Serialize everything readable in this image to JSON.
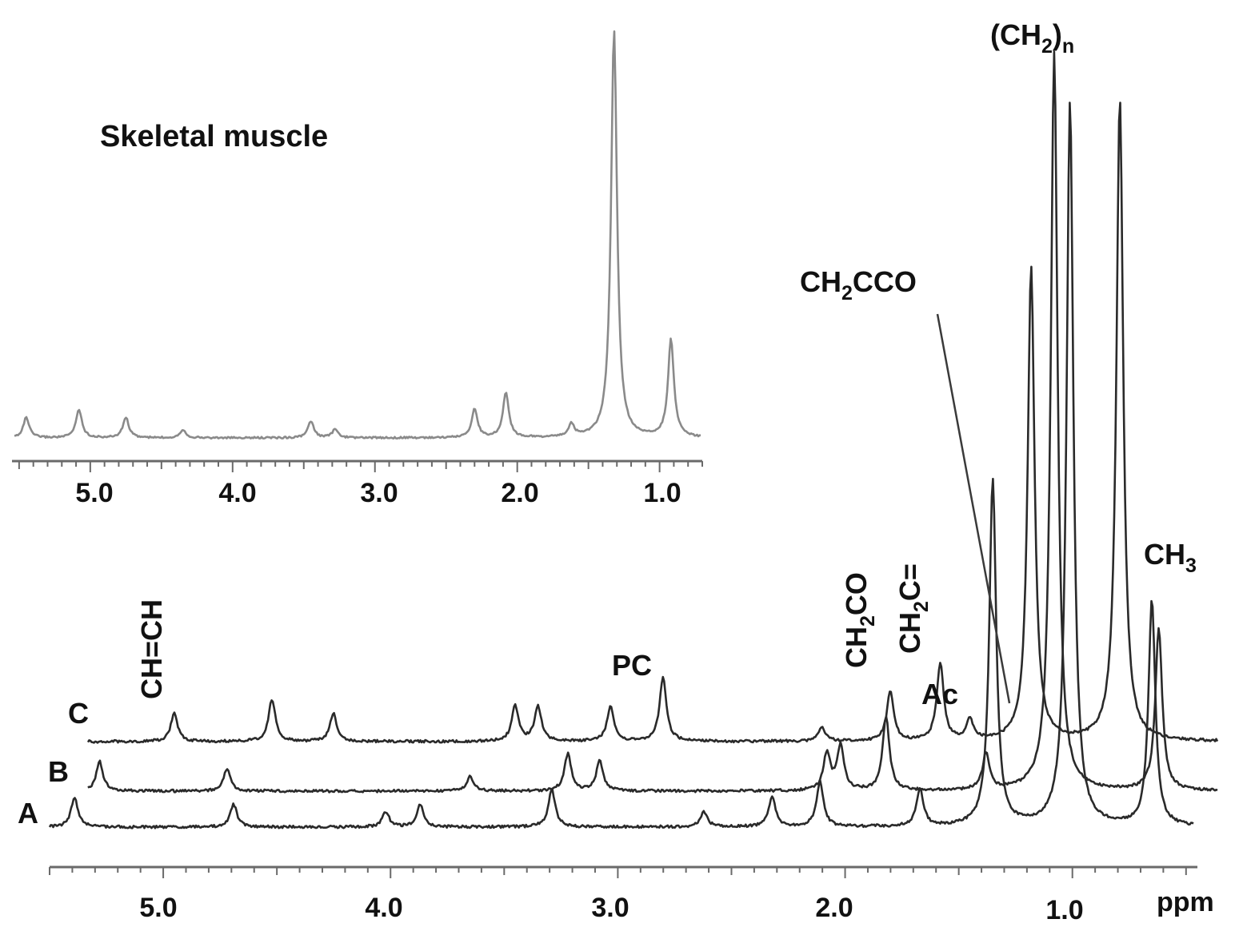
{
  "inset": {
    "title": "Skeletal muscle",
    "x_ticks": [
      "5.0",
      "4.0",
      "3.0",
      "2.0",
      "1.0"
    ]
  },
  "main": {
    "x_ticks": [
      "5.0",
      "4.0",
      "3.0",
      "2.0",
      "1.0"
    ],
    "x_unit": "ppm",
    "trace_labels": [
      "C",
      "B",
      "A"
    ],
    "peak_labels": {
      "ch2n": {
        "main": "(CH",
        "sub": "2",
        "close": ")",
        "sub2": "n"
      },
      "ch2cco": {
        "main": "CH",
        "sub": "2",
        "rest": "CCO"
      },
      "ch3": {
        "main": "CH",
        "sub": "3"
      },
      "chch": "CH=CH",
      "pc": "PC",
      "ch2co": {
        "main": "CH",
        "sub": "2",
        "rest": "CO"
      },
      "ch2c": {
        "main": "CH",
        "sub": "2",
        "rest": "C="
      },
      "ac": "Ac"
    }
  },
  "colors": {
    "trace": "#2a2a2a",
    "inset_trace": "#8a8a8a",
    "axis": "#6a6a6a",
    "text": "#111111"
  },
  "chart_data": [
    {
      "type": "line",
      "title": "Skeletal muscle",
      "xlabel": "",
      "ylabel": "",
      "x_reversed": true,
      "xlim": [
        5.55,
        0.7
      ],
      "x_ticks": [
        5.0,
        4.0,
        3.0,
        2.0,
        1.0
      ],
      "series": [
        {
          "peaks": [
            {
              "ppm": 5.45,
              "height": 0.05
            },
            {
              "ppm": 5.08,
              "height": 0.07
            },
            {
              "ppm": 4.75,
              "height": 0.05
            },
            {
              "ppm": 4.35,
              "height": 0.02
            },
            {
              "ppm": 3.45,
              "height": 0.04
            },
            {
              "ppm": 3.28,
              "height": 0.02
            },
            {
              "ppm": 2.3,
              "height": 0.07
            },
            {
              "ppm": 2.08,
              "height": 0.11
            },
            {
              "ppm": 1.62,
              "height": 0.03
            },
            {
              "ppm": 1.32,
              "height": 1.0
            },
            {
              "ppm": 0.92,
              "height": 0.24
            }
          ]
        }
      ]
    },
    {
      "type": "line",
      "xlabel": "ppm",
      "ylabel": "",
      "x_reversed": true,
      "xlim": [
        5.5,
        0.45
      ],
      "x_ticks": [
        5.0,
        4.0,
        3.0,
        2.0,
        1.0
      ],
      "series": [
        {
          "name": "C",
          "peaks": [
            {
              "ppm": 5.05,
              "height": 0.04
            },
            {
              "ppm": 4.62,
              "height": 0.06
            },
            {
              "ppm": 4.35,
              "height": 0.04
            },
            {
              "ppm": 3.55,
              "height": 0.05
            },
            {
              "ppm": 3.45,
              "height": 0.05
            },
            {
              "ppm": 3.13,
              "height": 0.05
            },
            {
              "ppm": 2.9,
              "height": 0.09
            },
            {
              "ppm": 2.2,
              "height": 0.02
            },
            {
              "ppm": 1.9,
              "height": 0.07
            },
            {
              "ppm": 1.68,
              "height": 0.11
            },
            {
              "ppm": 1.55,
              "height": 0.03
            },
            {
              "ppm": 1.28,
              "height": 0.67
            },
            {
              "ppm": 0.89,
              "height": 0.91
            }
          ]
        },
        {
          "name": "B",
          "peaks": [
            {
              "ppm": 5.28,
              "height": 0.04
            },
            {
              "ppm": 4.72,
              "height": 0.03
            },
            {
              "ppm": 3.65,
              "height": 0.02
            },
            {
              "ppm": 3.22,
              "height": 0.05
            },
            {
              "ppm": 3.08,
              "height": 0.04
            },
            {
              "ppm": 2.08,
              "height": 0.05
            },
            {
              "ppm": 2.02,
              "height": 0.06
            },
            {
              "ppm": 1.82,
              "height": 0.1
            },
            {
              "ppm": 1.38,
              "height": 0.05
            },
            {
              "ppm": 1.08,
              "height": 1.0
            },
            {
              "ppm": 0.62,
              "height": 0.22
            }
          ]
        },
        {
          "name": "A",
          "peaks": [
            {
              "ppm": 5.32,
              "height": 0.04
            },
            {
              "ppm": 4.62,
              "height": 0.03
            },
            {
              "ppm": 3.95,
              "height": 0.02
            },
            {
              "ppm": 3.8,
              "height": 0.03
            },
            {
              "ppm": 3.22,
              "height": 0.05
            },
            {
              "ppm": 2.55,
              "height": 0.02
            },
            {
              "ppm": 2.25,
              "height": 0.04
            },
            {
              "ppm": 2.04,
              "height": 0.06
            },
            {
              "ppm": 1.6,
              "height": 0.05
            },
            {
              "ppm": 1.28,
              "height": 0.46
            },
            {
              "ppm": 0.94,
              "height": 0.96
            },
            {
              "ppm": 0.58,
              "height": 0.3
            }
          ]
        }
      ]
    }
  ]
}
